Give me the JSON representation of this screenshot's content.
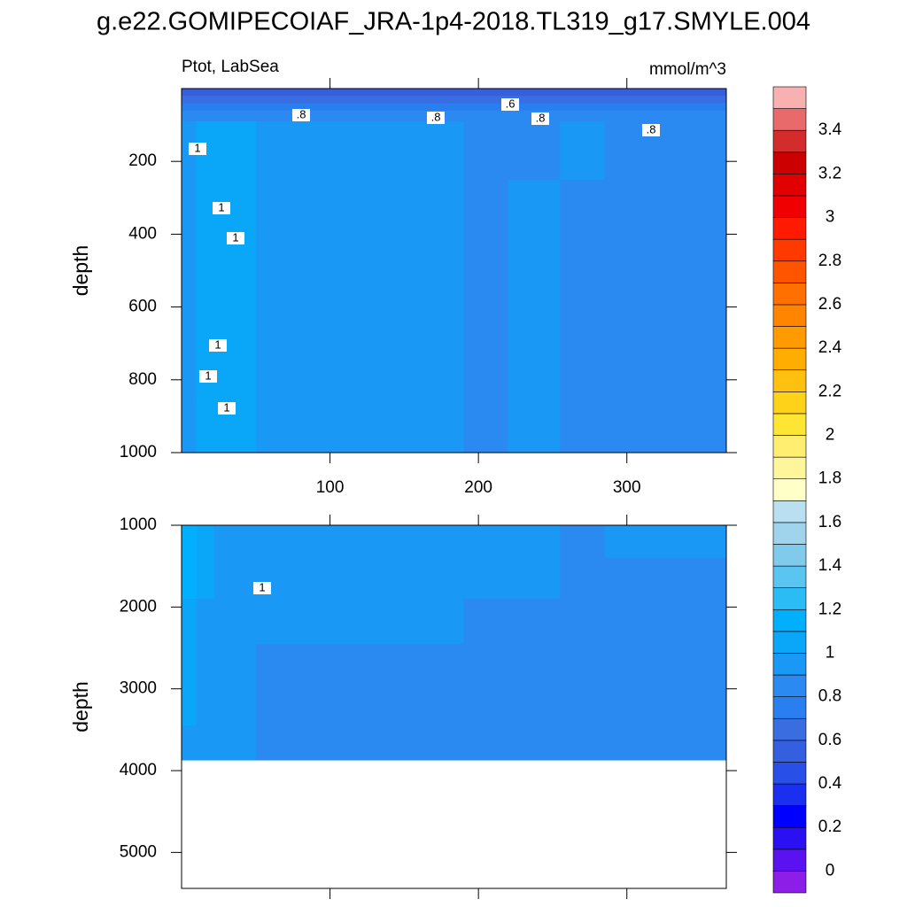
{
  "chart_data": {
    "type": "contour",
    "title": "g.e22.GOMIPECOIAF_JRA-1p4-2018.TL319_g17.SMYLE.004",
    "subtitle_left": "Ptot, LabSea",
    "subtitle_right": "mmol/m^3",
    "levels": [
      0,
      0.1,
      0.2,
      0.3,
      0.4,
      0.5,
      0.6,
      0.7,
      0.8,
      0.9,
      1,
      1.1,
      1.2,
      1.3,
      1.4,
      1.5,
      1.6,
      1.7,
      1.8,
      1.9,
      2,
      2.1,
      2.2,
      2.3,
      2.4,
      2.5,
      2.6,
      2.7,
      2.8,
      2.9,
      3,
      3.1,
      3.2,
      3.3,
      3.4,
      3.5
    ],
    "colors": [
      "#8d1ee8",
      "#5a12f0",
      "#2a10f2",
      "#0000ff",
      "#1a2ff0",
      "#2850e8",
      "#3460e0",
      "#3a6ee0",
      "#2a7ff0",
      "#2b8af2",
      "#1a98f5",
      "#0aa6f8",
      "#00b0ff",
      "#2bbcf5",
      "#5ac5f0",
      "#80cbeb",
      "#9fd4ec",
      "#badff0",
      "#ffffc8",
      "#fff59a",
      "#ffee70",
      "#ffe534",
      "#ffd21a",
      "#ffc010",
      "#ffad00",
      "#ff9a00",
      "#ff8500",
      "#ff7000",
      "#ff5400",
      "#ff3a00",
      "#ff1a00",
      "#f00000",
      "#e00000",
      "#cc0000",
      "#d22c2c",
      "#e86a6a",
      "#f8b0b0"
    ],
    "panels": [
      {
        "ylabel": "depth",
        "xlim": [
          0,
          367
        ],
        "ylim": [
          0,
          1000
        ],
        "xticks": [
          100,
          200,
          300
        ],
        "yticks": [
          200,
          400,
          600,
          800,
          1000
        ],
        "show_xtick_labels": true,
        "x_edges": [
          0,
          10,
          22,
          50,
          120,
          190,
          220,
          255,
          285,
          320,
          367
        ],
        "depth_edges": [
          0,
          20,
          40,
          60,
          90,
          250,
          550,
          850,
          1000
        ],
        "z": [
          [
            0.55,
            0.55,
            0.55,
            0.55,
            0.55,
            0.55,
            0.55,
            0.55,
            0.55,
            0.55
          ],
          [
            0.65,
            0.65,
            0.65,
            0.65,
            0.65,
            0.65,
            0.65,
            0.65,
            0.65,
            0.65
          ],
          [
            0.75,
            0.75,
            0.75,
            0.75,
            0.75,
            0.75,
            0.75,
            0.75,
            0.75,
            0.75
          ],
          [
            0.85,
            0.85,
            0.85,
            0.85,
            0.85,
            0.85,
            0.85,
            0.85,
            0.85,
            0.85
          ],
          [
            0.95,
            1.05,
            1.02,
            0.95,
            0.95,
            0.85,
            0.88,
            0.95,
            0.85,
            0.85
          ],
          [
            0.95,
            1.02,
            1.03,
            0.95,
            0.95,
            0.85,
            0.95,
            0.88,
            0.85,
            0.85
          ],
          [
            0.95,
            1.02,
            1.03,
            0.95,
            0.95,
            0.85,
            0.95,
            0.88,
            0.85,
            0.85
          ],
          [
            0.95,
            1.02,
            1.03,
            0.95,
            0.95,
            0.85,
            0.95,
            0.88,
            0.85,
            0.85
          ]
        ],
        "contour_labels": [
          ".8",
          ".8",
          ".6",
          ".8",
          ".8",
          "1",
          "1",
          "1",
          "1",
          "1",
          "1"
        ]
      },
      {
        "ylabel": "depth",
        "xlim": [
          0,
          367
        ],
        "ylim": [
          1000,
          5440
        ],
        "xticks": [
          100,
          200,
          300
        ],
        "yticks": [
          1000,
          2000,
          3000,
          4000,
          5000
        ],
        "show_xtick_labels": false,
        "x_edges": [
          0,
          10,
          22,
          50,
          120,
          190,
          220,
          255,
          285,
          320,
          367
        ],
        "depth_edges": [
          1000,
          1400,
          1900,
          2450,
          2950,
          3450,
          3870
        ],
        "z": [
          [
            1.15,
            1.05,
            0.95,
            0.95,
            0.95,
            0.95,
            0.95,
            0.88,
            0.95,
            0.95
          ],
          [
            1.15,
            1.05,
            0.95,
            0.95,
            0.95,
            0.95,
            0.9,
            0.88,
            0.88,
            0.88
          ],
          [
            1.05,
            0.95,
            0.95,
            0.95,
            0.95,
            0.88,
            0.88,
            0.88,
            0.88,
            0.88
          ],
          [
            1.05,
            0.95,
            0.95,
            0.88,
            0.88,
            0.88,
            0.88,
            0.88,
            0.88,
            0.88
          ],
          [
            1.05,
            0.95,
            0.95,
            0.88,
            0.88,
            0.88,
            0.88,
            0.88,
            0.88,
            0.88
          ],
          [
            0.95,
            0.95,
            0.95,
            0.88,
            0.88,
            0.88,
            0.88,
            0.88,
            0.88,
            0.88
          ]
        ],
        "contour_labels": [
          "1"
        ]
      }
    ]
  }
}
